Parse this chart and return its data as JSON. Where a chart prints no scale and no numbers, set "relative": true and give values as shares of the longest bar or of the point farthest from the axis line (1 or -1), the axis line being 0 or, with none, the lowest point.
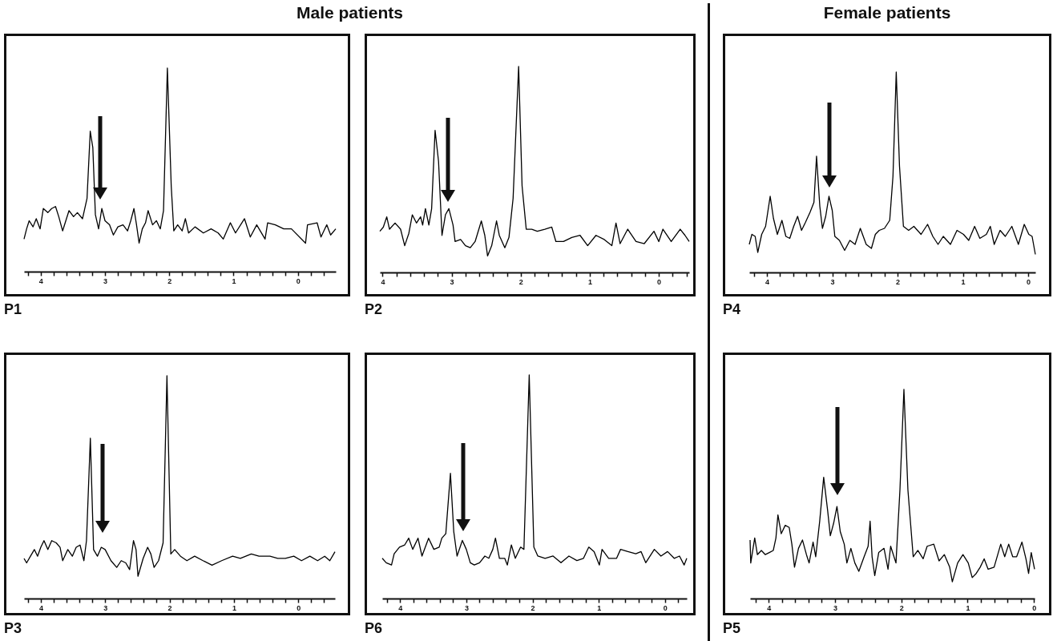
{
  "chart_data": [
    {
      "type": "other",
      "title": "Male patients"
    },
    {
      "type": "other",
      "title": "Female patients"
    },
    {
      "type": "line",
      "title": "P1",
      "relative": true,
      "color": "#000000",
      "xlim": [
        4.26,
        -0.59
      ],
      "xticks": [
        {
          "value": 4.2,
          "label": null
        },
        4,
        {
          "value": 3.8,
          "label": null
        },
        {
          "value": 3.6,
          "label": null
        },
        {
          "value": 3.4,
          "label": null
        },
        {
          "value": 3.2,
          "label": null
        },
        3,
        {
          "value": 2.8,
          "label": null
        },
        {
          "value": 2.6,
          "label": null
        },
        {
          "value": 2.4,
          "label": null
        },
        {
          "value": 2.2,
          "label": null
        },
        2,
        {
          "value": 1.8,
          "label": null
        },
        {
          "value": 1.6,
          "label": null
        },
        {
          "value": 1.4,
          "label": null
        },
        {
          "value": 1.2,
          "label": null
        },
        1,
        {
          "value": 0.8,
          "label": null
        },
        {
          "value": 0.6,
          "label": null
        },
        {
          "value": 0.4,
          "label": null
        },
        {
          "value": 0.2,
          "label": null
        },
        0,
        {
          "value": -0.2,
          "label": null
        },
        {
          "value": -0.4,
          "label": null
        }
      ],
      "x": [
        4.26,
        4.22,
        4.18,
        4.12,
        4.07,
        4.01,
        3.96,
        3.89,
        3.83,
        3.77,
        3.72,
        3.66,
        3.56,
        3.49,
        3.43,
        3.35,
        3.28,
        3.23,
        3.19,
        3.15,
        3.1,
        3.05,
        3.0,
        2.93,
        2.87,
        2.8,
        2.72,
        2.65,
        2.6,
        2.55,
        2.51,
        2.47,
        2.42,
        2.37,
        2.33,
        2.26,
        2.2,
        2.14,
        2.09,
        2.03,
        1.97,
        1.93,
        1.87,
        1.8,
        1.75,
        1.7,
        1.6,
        1.47,
        1.35,
        1.24,
        1.16,
        1.05,
        0.97,
        0.83,
        0.74,
        0.64,
        0.51,
        0.47,
        0.35,
        0.22,
        0.1,
        -0.12,
        -0.15,
        -0.3,
        -0.36,
        -0.45,
        -0.51,
        -0.59
      ],
      "values": [
        0.16,
        0.21,
        0.25,
        0.22,
        0.26,
        0.21,
        0.31,
        0.29,
        0.31,
        0.32,
        0.27,
        0.2,
        0.3,
        0.27,
        0.29,
        0.26,
        0.36,
        0.69,
        0.61,
        0.28,
        0.21,
        0.31,
        0.25,
        0.23,
        0.18,
        0.22,
        0.23,
        0.2,
        0.25,
        0.31,
        0.23,
        0.14,
        0.21,
        0.24,
        0.3,
        0.23,
        0.25,
        0.21,
        0.3,
        1,
        0.42,
        0.2,
        0.23,
        0.2,
        0.26,
        0.19,
        0.22,
        0.19,
        0.21,
        0.19,
        0.16,
        0.24,
        0.19,
        0.26,
        0.17,
        0.23,
        0.16,
        0.24,
        0.23,
        0.21,
        0.21,
        0.14,
        0.23,
        0.24,
        0.17,
        0.23,
        0.18,
        0.21
      ]
    },
    {
      "type": "line",
      "title": "P2",
      "relative": true,
      "color": "#000000",
      "xlim": [
        4.04,
        -0.44
      ],
      "xticks": [
        4,
        {
          "value": 3.8,
          "label": null
        },
        {
          "value": 3.6,
          "label": null
        },
        {
          "value": 3.4,
          "label": null
        },
        {
          "value": 3.2,
          "label": null
        },
        3,
        {
          "value": 2.8,
          "label": null
        },
        {
          "value": 2.6,
          "label": null
        },
        {
          "value": 2.4,
          "label": null
        },
        {
          "value": 2.2,
          "label": null
        },
        2,
        {
          "value": 1.8,
          "label": null
        },
        {
          "value": 1.6,
          "label": null
        },
        {
          "value": 1.4,
          "label": null
        },
        {
          "value": 1.2,
          "label": null
        },
        1,
        {
          "value": 0.8,
          "label": null
        },
        {
          "value": 0.6,
          "label": null
        },
        {
          "value": 0.4,
          "label": null
        },
        {
          "value": 0.2,
          "label": null
        },
        0,
        {
          "value": -0.2,
          "label": null
        },
        {
          "value": -0.4,
          "label": null
        }
      ],
      "x": [
        4.04,
        3.99,
        3.94,
        3.9,
        3.82,
        3.74,
        3.68,
        3.62,
        3.57,
        3.51,
        3.45,
        3.42,
        3.38,
        3.33,
        3.29,
        3.24,
        3.19,
        3.14,
        3.09,
        3.04,
        2.98,
        2.95,
        2.87,
        2.8,
        2.73,
        2.66,
        2.57,
        2.52,
        2.48,
        2.42,
        2.35,
        2.31,
        2.23,
        2.17,
        2.11,
        2.03,
        1.98,
        1.92,
        1.84,
        1.76,
        1.65,
        1.55,
        1.49,
        1.38,
        1.26,
        1.14,
        1.03,
        0.91,
        0.79,
        0.68,
        0.62,
        0.56,
        0.45,
        0.33,
        0.21,
        0.07,
        0.0,
        -0.06,
        -0.18,
        -0.31,
        -0.38,
        -0.44
      ],
      "values": [
        0.2,
        0.22,
        0.27,
        0.21,
        0.24,
        0.21,
        0.13,
        0.19,
        0.28,
        0.24,
        0.27,
        0.23,
        0.31,
        0.23,
        0.31,
        0.69,
        0.54,
        0.18,
        0.28,
        0.31,
        0.23,
        0.15,
        0.16,
        0.13,
        0.12,
        0.15,
        0.25,
        0.18,
        0.08,
        0.13,
        0.25,
        0.18,
        0.12,
        0.17,
        0.36,
        1,
        0.42,
        0.21,
        0.21,
        0.2,
        0.21,
        0.22,
        0.15,
        0.15,
        0.17,
        0.18,
        0.13,
        0.18,
        0.16,
        0.13,
        0.24,
        0.14,
        0.21,
        0.15,
        0.14,
        0.2,
        0.15,
        0.21,
        0.15,
        0.21,
        0.18,
        0.15
      ]
    },
    {
      "type": "line",
      "title": "P4",
      "relative": true,
      "color": "#000000",
      "xlim": [
        4.27,
        -0.11
      ],
      "xticks": [
        {
          "value": 4.2,
          "label": null
        },
        4,
        {
          "value": 3.8,
          "label": null
        },
        {
          "value": 3.6,
          "label": null
        },
        {
          "value": 3.4,
          "label": null
        },
        {
          "value": 3.2,
          "label": null
        },
        3,
        {
          "value": 2.8,
          "label": null
        },
        {
          "value": 2.6,
          "label": null
        },
        {
          "value": 2.4,
          "label": null
        },
        {
          "value": 2.2,
          "label": null
        },
        2,
        {
          "value": 1.8,
          "label": null
        },
        {
          "value": 1.6,
          "label": null
        },
        {
          "value": 1.4,
          "label": null
        },
        {
          "value": 1.2,
          "label": null
        },
        1,
        {
          "value": 0.8,
          "label": null
        },
        {
          "value": 0.6,
          "label": null
        },
        {
          "value": 0.4,
          "label": null
        },
        {
          "value": 0.2,
          "label": null
        },
        0
      ],
      "x": [
        4.27,
        4.23,
        4.18,
        4.14,
        4.08,
        4.02,
        3.95,
        3.9,
        3.84,
        3.77,
        3.71,
        3.65,
        3.59,
        3.53,
        3.47,
        3.41,
        3.34,
        3.28,
        3.24,
        3.19,
        3.15,
        3.1,
        3.05,
        3.0,
        2.96,
        2.89,
        2.81,
        2.73,
        2.65,
        2.57,
        2.48,
        2.4,
        2.34,
        2.28,
        2.2,
        2.12,
        2.07,
        2.02,
        1.97,
        1.91,
        1.83,
        1.75,
        1.64,
        1.54,
        1.46,
        1.38,
        1.3,
        1.19,
        1.09,
        0.99,
        0.91,
        0.82,
        0.74,
        0.64,
        0.58,
        0.52,
        0.43,
        0.35,
        0.25,
        0.15,
        0.06,
        -0.01,
        -0.06,
        -0.11
      ],
      "values": [
        0.14,
        0.19,
        0.18,
        0.1,
        0.19,
        0.23,
        0.38,
        0.27,
        0.19,
        0.26,
        0.18,
        0.17,
        0.23,
        0.28,
        0.21,
        0.25,
        0.3,
        0.35,
        0.58,
        0.33,
        0.22,
        0.28,
        0.38,
        0.31,
        0.18,
        0.16,
        0.11,
        0.16,
        0.14,
        0.22,
        0.14,
        0.12,
        0.19,
        0.21,
        0.22,
        0.26,
        0.48,
        1,
        0.53,
        0.23,
        0.21,
        0.23,
        0.19,
        0.24,
        0.18,
        0.14,
        0.18,
        0.14,
        0.21,
        0.19,
        0.16,
        0.23,
        0.17,
        0.19,
        0.23,
        0.14,
        0.21,
        0.18,
        0.23,
        0.14,
        0.24,
        0.19,
        0.18,
        0.09
      ]
    },
    {
      "type": "line",
      "title": "P3",
      "relative": true,
      "color": "#000000",
      "xlim": [
        4.26,
        -0.57
      ],
      "xticks": [
        {
          "value": 4.2,
          "label": null
        },
        4,
        {
          "value": 3.8,
          "label": null
        },
        {
          "value": 3.6,
          "label": null
        },
        {
          "value": 3.4,
          "label": null
        },
        {
          "value": 3.2,
          "label": null
        },
        3,
        {
          "value": 2.8,
          "label": null
        },
        {
          "value": 2.6,
          "label": null
        },
        {
          "value": 2.4,
          "label": null
        },
        {
          "value": 2.2,
          "label": null
        },
        2,
        {
          "value": 1.8,
          "label": null
        },
        {
          "value": 1.6,
          "label": null
        },
        {
          "value": 1.4,
          "label": null
        },
        {
          "value": 1.2,
          "label": null
        },
        1,
        {
          "value": 0.8,
          "label": null
        },
        {
          "value": 0.6,
          "label": null
        },
        {
          "value": 0.4,
          "label": null
        },
        {
          "value": 0.2,
          "label": null
        },
        0,
        {
          "value": -0.2,
          "label": null
        },
        {
          "value": -0.4,
          "label": null
        }
      ],
      "x": [
        4.26,
        4.22,
        4.16,
        4.1,
        4.05,
        4.0,
        3.95,
        3.89,
        3.83,
        3.76,
        3.7,
        3.66,
        3.58,
        3.51,
        3.45,
        3.39,
        3.33,
        3.29,
        3.23,
        3.18,
        3.12,
        3.06,
        3.0,
        2.91,
        2.82,
        2.75,
        2.68,
        2.62,
        2.56,
        2.52,
        2.49,
        2.41,
        2.34,
        2.29,
        2.24,
        2.17,
        2.1,
        2.04,
        1.98,
        1.92,
        1.83,
        1.73,
        1.61,
        1.48,
        1.34,
        1.19,
        1.02,
        0.9,
        0.73,
        0.61,
        0.44,
        0.32,
        0.2,
        0.07,
        -0.05,
        -0.18,
        -0.3,
        -0.41,
        -0.49,
        -0.57
      ],
      "values": [
        0.18,
        0.16,
        0.19,
        0.22,
        0.19,
        0.23,
        0.26,
        0.22,
        0.26,
        0.25,
        0.23,
        0.17,
        0.22,
        0.19,
        0.23,
        0.24,
        0.17,
        0.26,
        0.72,
        0.22,
        0.19,
        0.23,
        0.22,
        0.17,
        0.14,
        0.17,
        0.16,
        0.13,
        0.26,
        0.22,
        0.1,
        0.18,
        0.23,
        0.2,
        0.14,
        0.17,
        0.25,
        1,
        0.2,
        0.22,
        0.19,
        0.17,
        0.19,
        0.17,
        0.15,
        0.17,
        0.19,
        0.18,
        0.2,
        0.19,
        0.19,
        0.18,
        0.18,
        0.19,
        0.17,
        0.19,
        0.17,
        0.19,
        0.17,
        0.21
      ]
    },
    {
      "type": "line",
      "title": "P6",
      "relative": true,
      "color": "#000000",
      "xlim": [
        4.27,
        -0.33
      ],
      "xticks": [
        {
          "value": 4.2,
          "label": null
        },
        4,
        {
          "value": 3.8,
          "label": null
        },
        {
          "value": 3.6,
          "label": null
        },
        {
          "value": 3.4,
          "label": null
        },
        {
          "value": 3.2,
          "label": null
        },
        3,
        {
          "value": 2.8,
          "label": null
        },
        {
          "value": 2.6,
          "label": null
        },
        {
          "value": 2.4,
          "label": null
        },
        {
          "value": 2.2,
          "label": null
        },
        2,
        {
          "value": 1.8,
          "label": null
        },
        {
          "value": 1.6,
          "label": null
        },
        {
          "value": 1.4,
          "label": null
        },
        {
          "value": 1.2,
          "label": null
        },
        1,
        {
          "value": 0.8,
          "label": null
        },
        {
          "value": 0.6,
          "label": null
        },
        {
          "value": 0.4,
          "label": null
        },
        {
          "value": 0.2,
          "label": null
        },
        0,
        {
          "value": -0.2,
          "label": null
        }
      ],
      "x": [
        4.27,
        4.21,
        4.13,
        4.09,
        4.01,
        3.93,
        3.87,
        3.81,
        3.73,
        3.67,
        3.57,
        3.49,
        3.41,
        3.37,
        3.31,
        3.24,
        3.19,
        3.14,
        3.06,
        3.0,
        2.94,
        2.88,
        2.8,
        2.72,
        2.66,
        2.6,
        2.56,
        2.5,
        2.42,
        2.38,
        2.32,
        2.26,
        2.18,
        2.13,
        2.05,
        1.98,
        1.92,
        1.81,
        1.69,
        1.57,
        1.45,
        1.33,
        1.23,
        1.15,
        1.07,
        0.99,
        0.95,
        0.85,
        0.73,
        0.67,
        0.56,
        0.44,
        0.36,
        0.29,
        0.16,
        0.06,
        -0.04,
        -0.14,
        -0.22,
        -0.29,
        -0.33
      ],
      "values": [
        0.18,
        0.16,
        0.15,
        0.2,
        0.23,
        0.24,
        0.27,
        0.22,
        0.27,
        0.19,
        0.27,
        0.22,
        0.23,
        0.27,
        0.29,
        0.56,
        0.3,
        0.19,
        0.26,
        0.22,
        0.16,
        0.15,
        0.16,
        0.19,
        0.18,
        0.22,
        0.27,
        0.18,
        0.18,
        0.15,
        0.24,
        0.18,
        0.23,
        0.22,
        1,
        0.23,
        0.19,
        0.18,
        0.19,
        0.16,
        0.19,
        0.17,
        0.18,
        0.23,
        0.21,
        0.15,
        0.22,
        0.18,
        0.18,
        0.22,
        0.21,
        0.2,
        0.21,
        0.16,
        0.22,
        0.19,
        0.21,
        0.18,
        0.19,
        0.15,
        0.18
      ]
    },
    {
      "type": "line",
      "title": "P5",
      "relative": true,
      "color": "#000000",
      "xlim": [
        4.28,
        -0.01
      ],
      "xticks": [
        {
          "value": 4.2,
          "label": null
        },
        4,
        {
          "value": 3.8,
          "label": null
        },
        {
          "value": 3.6,
          "label": null
        },
        {
          "value": 3.4,
          "label": null
        },
        {
          "value": 3.2,
          "label": null
        },
        3,
        {
          "value": 2.8,
          "label": null
        },
        {
          "value": 2.6,
          "label": null
        },
        {
          "value": 2.4,
          "label": null
        },
        {
          "value": 2.2,
          "label": null
        },
        2,
        {
          "value": 1.8,
          "label": null
        },
        {
          "value": 1.6,
          "label": null
        },
        {
          "value": 1.4,
          "label": null
        },
        {
          "value": 1.2,
          "label": null
        },
        1,
        {
          "value": 0.8,
          "label": null
        },
        {
          "value": 0.6,
          "label": null
        },
        {
          "value": 0.4,
          "label": null
        },
        {
          "value": 0.2,
          "label": null
        },
        0
      ],
      "x": [
        4.28,
        4.27,
        4.21,
        4.17,
        4.11,
        4.05,
        3.99,
        3.93,
        3.89,
        3.86,
        3.81,
        3.75,
        3.69,
        3.65,
        3.61,
        3.55,
        3.49,
        3.43,
        3.39,
        3.33,
        3.29,
        3.23,
        3.17,
        3.11,
        3.07,
        3.02,
        2.97,
        2.92,
        2.86,
        2.82,
        2.76,
        2.7,
        2.64,
        2.56,
        2.5,
        2.47,
        2.44,
        2.4,
        2.34,
        2.26,
        2.2,
        2.16,
        2.08,
        2.02,
        1.96,
        1.9,
        1.82,
        1.75,
        1.67,
        1.61,
        1.51,
        1.43,
        1.35,
        1.27,
        1.23,
        1.15,
        1.07,
        0.99,
        0.93,
        0.87,
        0.81,
        0.75,
        0.69,
        0.6,
        0.5,
        0.44,
        0.38,
        0.32,
        0.26,
        0.18,
        0.12,
        0.08,
        0.04,
        -0.01
      ],
      "values": [
        0.28,
        0.17,
        0.29,
        0.21,
        0.23,
        0.21,
        0.22,
        0.23,
        0.29,
        0.4,
        0.31,
        0.35,
        0.34,
        0.26,
        0.15,
        0.24,
        0.28,
        0.21,
        0.17,
        0.27,
        0.2,
        0.37,
        0.58,
        0.42,
        0.3,
        0.36,
        0.44,
        0.32,
        0.26,
        0.17,
        0.24,
        0.17,
        0.13,
        0.2,
        0.25,
        0.37,
        0.2,
        0.11,
        0.22,
        0.24,
        0.14,
        0.25,
        0.17,
        0.52,
        1,
        0.52,
        0.2,
        0.23,
        0.19,
        0.25,
        0.26,
        0.18,
        0.21,
        0.15,
        0.08,
        0.17,
        0.21,
        0.17,
        0.1,
        0.12,
        0.15,
        0.19,
        0.14,
        0.15,
        0.26,
        0.2,
        0.26,
        0.2,
        0.2,
        0.27,
        0.19,
        0.12,
        0.22,
        0.14
      ]
    }
  ]
}
